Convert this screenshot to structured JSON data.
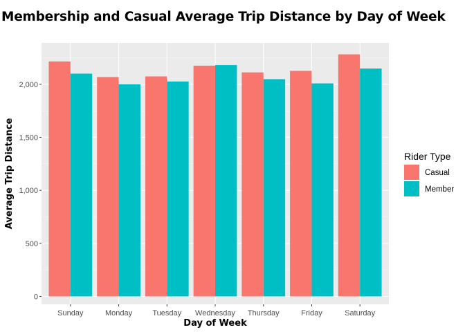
{
  "chart_data": {
    "type": "bar",
    "title": "Membership and Casual Average Trip Distance by Day of Week",
    "xlabel": "Day of Week",
    "ylabel": "Average Trip Distance",
    "categories": [
      "Sunday",
      "Monday",
      "Tuesday",
      "Wednesday",
      "Thursday",
      "Friday",
      "Saturday"
    ],
    "series": [
      {
        "name": "Casual",
        "color": "#F8766D",
        "values": [
          2215,
          2068,
          2074,
          2175,
          2112,
          2126,
          2282
        ]
      },
      {
        "name": "Member",
        "color": "#00BFC4",
        "values": [
          2100,
          2000,
          2026,
          2181,
          2048,
          2008,
          2148
        ]
      }
    ],
    "ylim": [
      -75,
      2390
    ],
    "yticks": [
      0,
      500,
      1000,
      1500,
      2000
    ],
    "ytick_labels": [
      "0",
      "500",
      "1,000",
      "1,500",
      "2,000"
    ],
    "grid": true,
    "legend": {
      "title": "Rider Type",
      "position": "right"
    }
  }
}
